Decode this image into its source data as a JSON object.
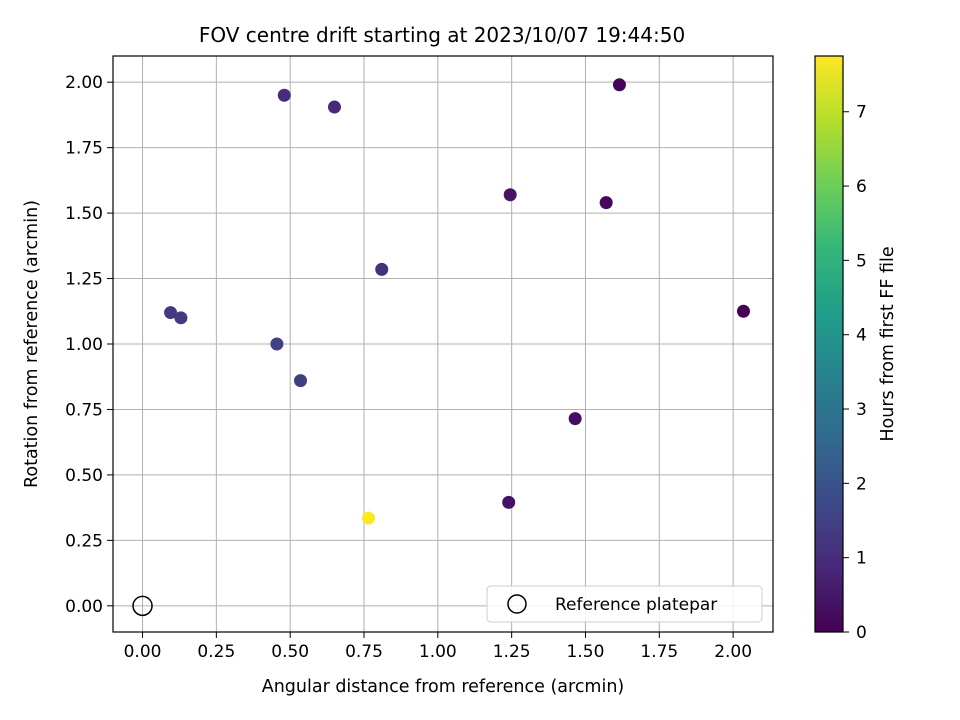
{
  "chart_data": {
    "type": "scatter",
    "title": "FOV centre drift starting at 2023/10/07 19:44:50",
    "xlabel": "Angular distance from reference (arcmin)",
    "ylabel": "Rotation from reference (arcmin)",
    "xlim": [
      -0.1,
      2.135
    ],
    "ylim": [
      -0.1,
      2.1
    ],
    "xticks": [
      0.0,
      0.25,
      0.5,
      0.75,
      1.0,
      1.25,
      1.5,
      1.75,
      2.0
    ],
    "xtick_labels": [
      "0.00",
      "0.25",
      "0.50",
      "0.75",
      "1.00",
      "1.25",
      "1.50",
      "1.75",
      "2.00"
    ],
    "yticks": [
      0.0,
      0.25,
      0.5,
      0.75,
      1.0,
      1.25,
      1.5,
      1.75,
      2.0
    ],
    "ytick_labels": [
      "0.00",
      "0.25",
      "0.50",
      "0.75",
      "1.00",
      "1.25",
      "1.50",
      "1.75",
      "2.00"
    ],
    "grid": true,
    "colormap": "viridis",
    "colorbar": {
      "label": "Hours from first FF file",
      "range": [
        0,
        7.75
      ],
      "ticks": [
        0,
        1,
        2,
        3,
        4,
        5,
        6,
        7
      ],
      "tick_labels": [
        "0",
        "1",
        "2",
        "3",
        "4",
        "5",
        "6",
        "7"
      ]
    },
    "points": [
      {
        "x": 0.48,
        "y": 1.95,
        "hours": 1.0
      },
      {
        "x": 0.65,
        "y": 1.905,
        "hours": 0.85
      },
      {
        "x": 1.615,
        "y": 1.99,
        "hours": 0.1
      },
      {
        "x": 1.245,
        "y": 1.57,
        "hours": 0.4
      },
      {
        "x": 1.57,
        "y": 1.54,
        "hours": 0.15
      },
      {
        "x": 0.81,
        "y": 1.285,
        "hours": 1.1
      },
      {
        "x": 0.095,
        "y": 1.12,
        "hours": 1.3
      },
      {
        "x": 0.13,
        "y": 1.1,
        "hours": 1.35
      },
      {
        "x": 0.455,
        "y": 1.0,
        "hours": 1.5
      },
      {
        "x": 0.535,
        "y": 0.86,
        "hours": 1.45
      },
      {
        "x": 2.035,
        "y": 1.125,
        "hours": 0.05
      },
      {
        "x": 1.465,
        "y": 0.715,
        "hours": 0.3
      },
      {
        "x": 1.24,
        "y": 0.395,
        "hours": 0.35
      },
      {
        "x": 0.765,
        "y": 0.335,
        "hours": 7.75
      }
    ],
    "reference": {
      "x": 0.0,
      "y": 0.0
    },
    "legend": {
      "label": "Reference platepar",
      "position": "lower-right"
    }
  }
}
